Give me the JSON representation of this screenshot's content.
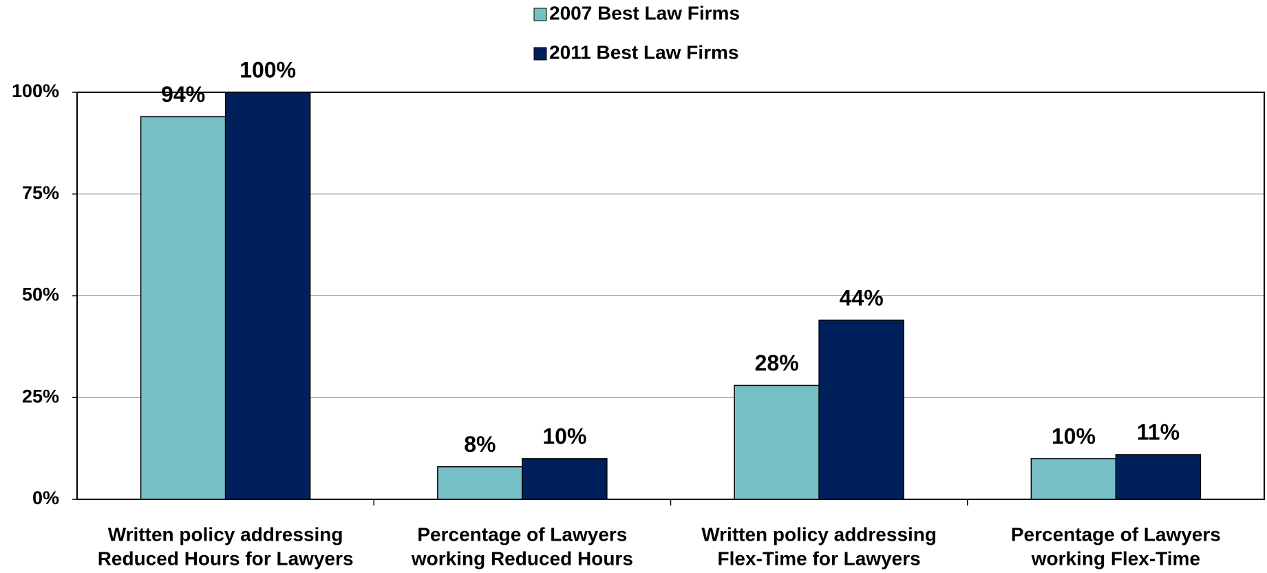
{
  "chart_data": {
    "type": "bar",
    "categories": [
      [
        "Written policy addressing",
        "Reduced Hours for Lawyers"
      ],
      [
        "Percentage of Lawyers",
        "working Reduced Hours"
      ],
      [
        "Written policy addressing",
        "Flex-Time for Lawyers"
      ],
      [
        "Percentage of Lawyers",
        "working Flex-Time"
      ]
    ],
    "series": [
      {
        "name": "2007 Best Law Firms",
        "color": "#76c0c5",
        "values": [
          94,
          8,
          28,
          10
        ],
        "value_labels": [
          "94%",
          "8%",
          "28%",
          "10%"
        ]
      },
      {
        "name": "2011 Best Law Firms",
        "color": "#00205b",
        "values": [
          100,
          10,
          44,
          11
        ],
        "value_labels": [
          "100%",
          "10%",
          "44%",
          "11%"
        ]
      }
    ],
    "ylim": [
      0,
      100
    ],
    "yticks": [
      {
        "value": 0,
        "label": "0%"
      },
      {
        "value": 25,
        "label": "25%"
      },
      {
        "value": 50,
        "label": "50%"
      },
      {
        "value": 75,
        "label": "75%"
      },
      {
        "value": 100,
        "label": "100%"
      }
    ],
    "grid": true,
    "legend": "top"
  }
}
